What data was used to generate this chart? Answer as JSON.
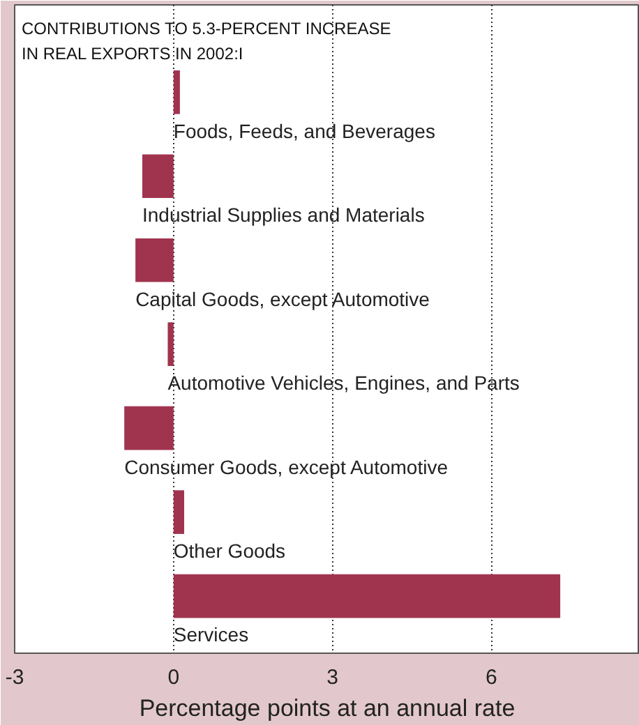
{
  "chart_data": {
    "type": "bar",
    "orientation": "horizontal",
    "title": "CONTRIBUTIONS TO 5.3-PERCENT INCREASE\nIN REAL EXPORTS IN 2002:I",
    "xlabel": "Percentage points at an annual rate",
    "categories": [
      "Foods, Feeds, and Beverages",
      "Industrial Supplies and Materials",
      "Capital Goods, except Automotive",
      "Automotive Vehicles, Engines, and Parts",
      "Consumer Goods, except Automotive",
      "Other Goods",
      "Services"
    ],
    "values": [
      0.12,
      -0.59,
      -0.72,
      -0.11,
      -0.93,
      0.2,
      7.3
    ],
    "color": "#a0344f",
    "xlim": [
      -3,
      8.8
    ],
    "xticks": [
      -3,
      0,
      3,
      6
    ],
    "grid": "x"
  }
}
